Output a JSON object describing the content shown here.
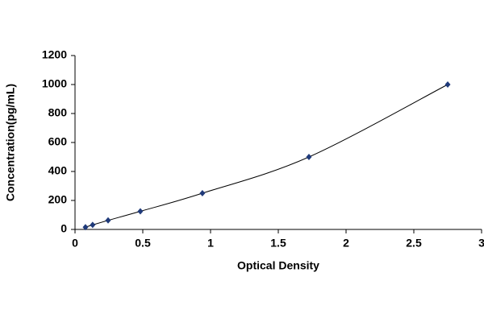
{
  "chart_data": {
    "type": "scatter",
    "x_label": "Optical Density",
    "y_label": "Concentration(pg/mL)",
    "x": [
      0.077,
      0.13,
      0.244,
      0.482,
      0.94,
      1.726,
      2.75
    ],
    "series": [
      {
        "color": "#1f3a7a",
        "values": [
          15.6,
          31.25,
          62.5,
          125,
          250,
          500,
          1000
        ]
      }
    ],
    "line_color": "#000000",
    "xlim": [
      0,
      3
    ],
    "xticks": [
      0,
      0.5,
      1,
      1.5,
      2,
      2.5,
      3
    ],
    "ylim": [
      0,
      1200
    ],
    "yticks": [
      0,
      200,
      400,
      600,
      800,
      1000,
      1200
    ],
    "grid": false
  }
}
